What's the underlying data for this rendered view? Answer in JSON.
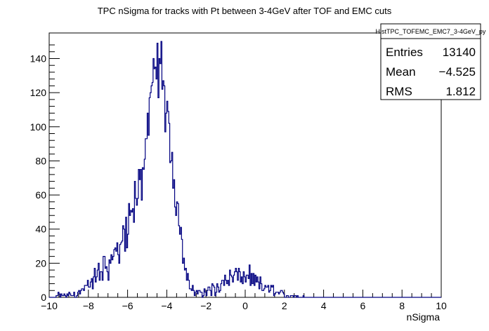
{
  "chart_data": {
    "type": "bar",
    "style": "step-histogram",
    "title": "TPC nSigma for tracks with Pt between 3-4GeV after TOF and EMC cuts",
    "xlabel": "nSigma",
    "ylabel": "",
    "xlim": [
      -10,
      10
    ],
    "ylim": [
      0,
      155
    ],
    "x_ticks": [
      "−10",
      "−8",
      "−6",
      "−4",
      "−2",
      "0",
      "2",
      "4",
      "6",
      "8",
      "10"
    ],
    "y_ticks": [
      "0",
      "20",
      "40",
      "60",
      "80",
      "100",
      "120",
      "140"
    ],
    "line_color": "#000080",
    "bin_width": 0.05,
    "grid": false,
    "stats_box": {
      "name": "HistTPC_TOFEMC_EMC7_3-4GeV_py",
      "entries_label": "Entries",
      "entries": "13140",
      "mean_label": "Mean",
      "mean": "−4.525",
      "rms_label": "RMS",
      "rms": "1.812",
      "placement": "top-right"
    },
    "shape_points": [
      [
        -10,
        0
      ],
      [
        -9.7,
        0
      ],
      [
        -9.5,
        1
      ],
      [
        -9.2,
        1
      ],
      [
        -9.0,
        1.5
      ],
      [
        -8.7,
        2
      ],
      [
        -8.4,
        3
      ],
      [
        -8.2,
        5
      ],
      [
        -8.0,
        7
      ],
      [
        -7.8,
        9
      ],
      [
        -7.6,
        12
      ],
      [
        -7.4,
        15
      ],
      [
        -7.2,
        18
      ],
      [
        -7.0,
        20
      ],
      [
        -6.8,
        23
      ],
      [
        -6.6,
        26
      ],
      [
        -6.4,
        30
      ],
      [
        -6.2,
        35
      ],
      [
        -6.0,
        38
      ],
      [
        -5.8,
        45
      ],
      [
        -5.6,
        55
      ],
      [
        -5.4,
        63
      ],
      [
        -5.2,
        82
      ],
      [
        -5.0,
        98
      ],
      [
        -4.8,
        115
      ],
      [
        -4.6,
        128
      ],
      [
        -4.5,
        135
      ],
      [
        -4.4,
        132
      ],
      [
        -4.3,
        128
      ],
      [
        -4.2,
        122
      ],
      [
        -4.0,
        105
      ],
      [
        -3.8,
        86
      ],
      [
        -3.6,
        70
      ],
      [
        -3.4,
        50
      ],
      [
        -3.2,
        32
      ],
      [
        -3.0,
        14
      ],
      [
        -2.8,
        6
      ],
      [
        -2.6,
        3
      ],
      [
        -2.4,
        2
      ],
      [
        -2.2,
        3
      ],
      [
        -2.0,
        3
      ],
      [
        -1.8,
        4
      ],
      [
        -1.6,
        5
      ],
      [
        -1.4,
        7
      ],
      [
        -1.2,
        8
      ],
      [
        -1.0,
        10
      ],
      [
        -0.8,
        11
      ],
      [
        -0.6,
        11.5
      ],
      [
        -0.4,
        12
      ],
      [
        -0.2,
        12
      ],
      [
        0.0,
        11
      ],
      [
        0.2,
        10
      ],
      [
        0.4,
        9
      ],
      [
        0.6,
        8
      ],
      [
        0.8,
        7
      ],
      [
        1.0,
        6
      ],
      [
        1.2,
        5
      ],
      [
        1.4,
        4
      ],
      [
        1.6,
        3
      ],
      [
        1.8,
        2
      ],
      [
        2.0,
        1.5
      ],
      [
        2.4,
        1
      ],
      [
        2.8,
        0.5
      ],
      [
        3.0,
        0
      ],
      [
        10,
        0
      ]
    ],
    "peaks": [
      [
        -4.45,
        149
      ],
      [
        -4.65,
        140
      ],
      [
        -4.35,
        137
      ],
      [
        -4.85,
        120
      ],
      [
        -3.95,
        115
      ],
      [
        -0.3,
        17
      ]
    ]
  }
}
